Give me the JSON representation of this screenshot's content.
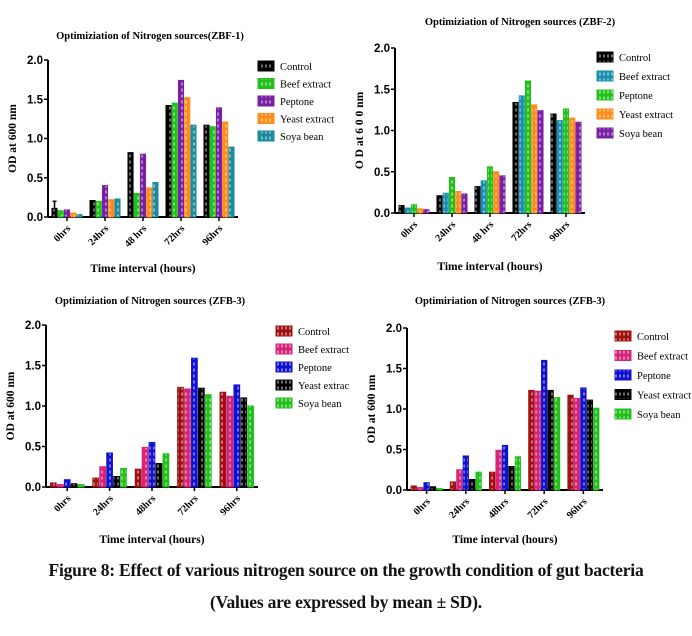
{
  "figure": {
    "caption_line1": "Figure 8: Effect of various nitrogen source on the growth condition of gut bacteria",
    "caption_line2": "(Values are expressed by mean ± SD)."
  },
  "chart_data": [
    {
      "type": "bar",
      "title": "Optimiziation of Nitrogen sources(ZBF-1)",
      "xlabel": "Time interval (hours)",
      "ylabel": "OD at 600 nm",
      "ylim": [
        0,
        2.0
      ],
      "yticks": [
        "0.0",
        "0.5",
        "1.0",
        "1.5",
        "2.0"
      ],
      "categories": [
        "0hrs",
        "24hrs",
        "48 hrs",
        "72hrs",
        "96hrs"
      ],
      "legend_position": "right",
      "grid": false,
      "series": [
        {
          "name": "Control",
          "color": "#000000",
          "values": [
            0.11,
            0.21,
            0.82,
            1.42,
            1.17
          ],
          "error_top": [
            0.2,
            null,
            null,
            null,
            null
          ]
        },
        {
          "name": "Beef extract",
          "color": "#22c01c",
          "values": [
            0.08,
            0.2,
            0.3,
            1.45,
            1.15
          ]
        },
        {
          "name": "Peptone",
          "color": "#7a1fa2",
          "values": [
            0.09,
            0.4,
            0.8,
            1.74,
            1.39
          ]
        },
        {
          "name": " Yeast extract",
          "color": "#ff8c1a",
          "values": [
            0.05,
            0.22,
            0.37,
            1.52,
            1.21
          ]
        },
        {
          "name": "Soya bean",
          "color": "#1a8a9c",
          "values": [
            0.03,
            0.23,
            0.44,
            1.17,
            0.89
          ]
        }
      ]
    },
    {
      "type": "bar",
      "title": "Optimiziation of Nitrogen sources (ZBF-2)",
      "xlabel": "Time interval (hours)",
      "ylabel": "O D at 6 0 0  nm",
      "ylim": [
        0,
        2.0
      ],
      "yticks": [
        "0.0",
        "0.5",
        "1.0",
        "1.5",
        "2.0"
      ],
      "categories": [
        "0hrs",
        "24hrs",
        "48 hrs",
        "72hrs",
        "96hrs"
      ],
      "legend_position": "right",
      "grid": false,
      "series": [
        {
          "name": "Control",
          "color": "#000000",
          "values": [
            0.09,
            0.21,
            0.32,
            1.34,
            1.2
          ]
        },
        {
          "name": "Beef extract",
          "color": "#1a8fb0",
          "values": [
            0.06,
            0.24,
            0.39,
            1.42,
            1.12
          ]
        },
        {
          "name": "Peptone",
          "color": "#22c01c",
          "values": [
            0.1,
            0.43,
            0.56,
            1.6,
            1.26
          ]
        },
        {
          "name": "Yeast extract",
          "color": "#ff8c1a",
          "values": [
            0.05,
            0.26,
            0.5,
            1.31,
            1.15
          ]
        },
        {
          "name": "Soya bean",
          "color": "#7a1fa2",
          "values": [
            0.04,
            0.23,
            0.45,
            1.24,
            1.1
          ]
        }
      ]
    },
    {
      "type": "bar",
      "title": "Optimiziation of Nitrogen sources (ZFB-3)",
      "xlabel": "Time interval (hours)",
      "ylabel": "OD at 600 nm",
      "ylim": [
        0,
        2.0
      ],
      "yticks": [
        "0.0",
        "0.5",
        "1.0",
        "1.5",
        "2.0"
      ],
      "categories": [
        "0hrs",
        "24hrs",
        "48hrs",
        "72hrs",
        "96hrs"
      ],
      "legend_position": "right",
      "grid": false,
      "series": [
        {
          "name": "Control",
          "color": "#a01010",
          "values": [
            0.05,
            0.11,
            0.22,
            1.23,
            1.17
          ]
        },
        {
          "name": "Beef extract",
          "color": "#d4237a",
          "values": [
            0.03,
            0.25,
            0.49,
            1.21,
            1.12
          ]
        },
        {
          "name": "Peptone",
          "color": "#1010d0",
          "values": [
            0.09,
            0.42,
            0.55,
            1.59,
            1.26
          ]
        },
        {
          "name": "Yeast extrac",
          "color": "#000000",
          "values": [
            0.04,
            0.13,
            0.29,
            1.22,
            1.1
          ]
        },
        {
          "name": "Soya bean",
          "color": "#22c01c",
          "values": [
            0.03,
            0.23,
            0.41,
            1.14,
            1.0
          ]
        }
      ]
    },
    {
      "type": "bar",
      "title": "Optimiriation of Nitrogen sources (ZFB-3)",
      "xlabel": "Time interval (hours)",
      "ylabel": "OD at 600 nm",
      "ylim": [
        0,
        2.0
      ],
      "yticks": [
        "0.0",
        "0.5",
        "1.0",
        "1.5",
        "2.0"
      ],
      "categories": [
        "0hrs",
        "24hrs",
        "48hrs",
        "72hrs",
        "96hrs"
      ],
      "legend_position": "right",
      "grid": false,
      "series": [
        {
          "name": "Control",
          "color": "#a01010",
          "values": [
            0.05,
            0.1,
            0.22,
            1.23,
            1.17
          ]
        },
        {
          "name": "Beef extract",
          "color": "#d4237a",
          "values": [
            0.03,
            0.25,
            0.49,
            1.22,
            1.13
          ]
        },
        {
          "name": "Peptone",
          "color": "#1010d0",
          "values": [
            0.09,
            0.42,
            0.55,
            1.6,
            1.26
          ]
        },
        {
          "name": "Yeast extract",
          "color": "#000000",
          "values": [
            0.04,
            0.13,
            0.29,
            1.23,
            1.11
          ]
        },
        {
          "name": "Soya bean",
          "color": "#22c01c",
          "values": [
            0.02,
            0.22,
            0.41,
            1.14,
            1.01
          ]
        }
      ]
    }
  ]
}
